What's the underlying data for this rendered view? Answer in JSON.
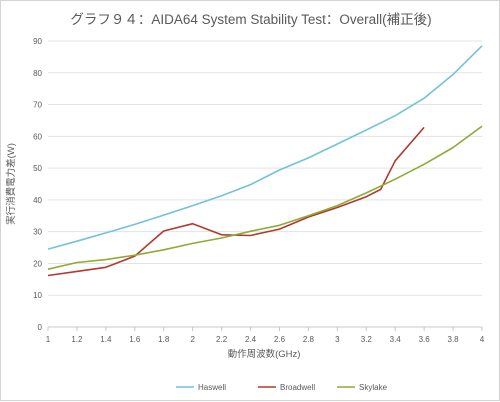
{
  "chart_data": {
    "type": "line",
    "title": "グラフ９４：AIDA64 System Stability Test：Overall(補正後)",
    "xlabel": "動作周波数(GHz)",
    "ylabel": "実行消費電力差(W)",
    "xlim": [
      1,
      4
    ],
    "ylim": [
      0,
      90
    ],
    "x_ticks": [
      "1",
      "1.2",
      "1.4",
      "1.6",
      "1.8",
      "2",
      "2.2",
      "2.4",
      "2.6",
      "2.8",
      "3",
      "3.2",
      "3.4",
      "3.6",
      "3.8",
      "4"
    ],
    "y_ticks": [
      "0",
      "10",
      "20",
      "30",
      "40",
      "50",
      "60",
      "70",
      "80",
      "90"
    ],
    "grid": "horizontal",
    "legend_position": "bottom",
    "series": [
      {
        "name": "Haswell",
        "color": "#74c1dc",
        "x": [
          1,
          1.2,
          1.4,
          1.6,
          1.8,
          2,
          2.2,
          2.4,
          2.6,
          2.8,
          3,
          3.2,
          3.4,
          3.6,
          3.8,
          4
        ],
        "y": [
          24.5,
          27,
          29.6,
          32.3,
          35.2,
          38.2,
          41.3,
          44.8,
          49.4,
          53.2,
          57.6,
          62,
          66.5,
          72,
          79.5,
          88.5
        ]
      },
      {
        "name": "Broadwell",
        "color": "#b03a2e",
        "x": [
          1,
          1.2,
          1.4,
          1.6,
          1.8,
          2,
          2.2,
          2.4,
          2.6,
          2.8,
          3,
          3.2,
          3.3,
          3.4,
          3.6
        ],
        "y": [
          16.2,
          17.5,
          18.8,
          22.3,
          30.2,
          32.5,
          29,
          28.8,
          30.8,
          34.6,
          37.6,
          41,
          43.3,
          52.3,
          62.8
        ]
      },
      {
        "name": "Skylake",
        "color": "#8faa36",
        "x": [
          1,
          1.2,
          1.4,
          1.6,
          1.8,
          2,
          2.2,
          2.4,
          2.6,
          2.8,
          3,
          3.2,
          3.4,
          3.6,
          3.8,
          4
        ],
        "y": [
          18.2,
          20.3,
          21.2,
          22.6,
          24.3,
          26.3,
          28,
          30.1,
          32,
          35,
          38.2,
          42.2,
          46.5,
          51.2,
          56.5,
          63.2
        ]
      }
    ]
  }
}
